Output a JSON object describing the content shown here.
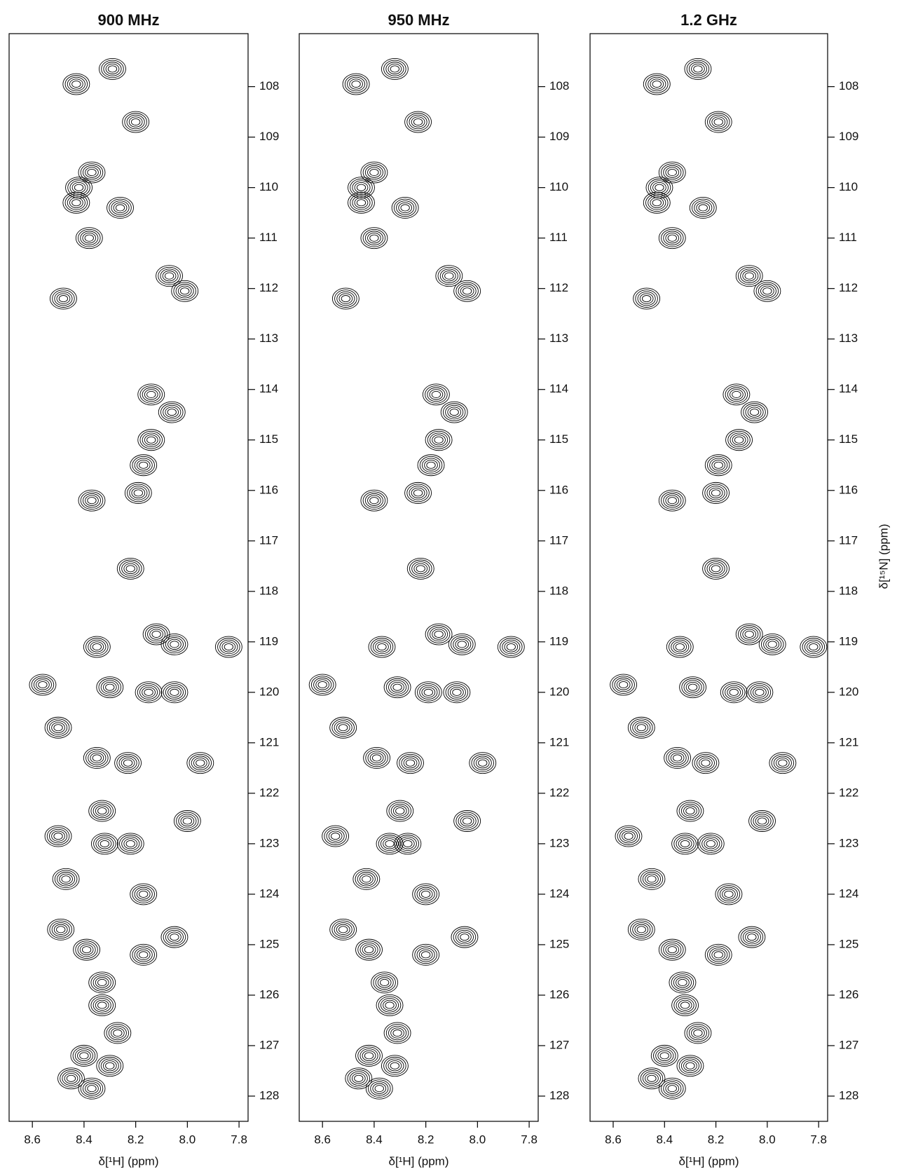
{
  "chart_data": [
    {
      "type": "scatter",
      "title": "900 MHz",
      "xlabel": "δ[¹H] (ppm)",
      "xlim": [
        8.69,
        7.765
      ],
      "xticks": [
        8.6,
        8.4,
        8.2,
        {
          "value": 8,
          "label": "8.0"
        },
        7.8
      ],
      "ylim": [
        128.5,
        106.95
      ],
      "yticks": [
        108,
        109,
        110,
        111,
        112,
        113,
        114,
        115,
        116,
        117,
        118,
        119,
        120,
        121,
        122,
        123,
        124,
        125,
        126,
        127,
        128
      ],
      "color": "#000000",
      "x": [
        8.29,
        8.43,
        8.2,
        8.37,
        8.42,
        8.43,
        8.26,
        8.38,
        8.07,
        8.01,
        8.48,
        8.14,
        8.06,
        8.14,
        8.17,
        8.37,
        8.19,
        8.22,
        8.35,
        8.12,
        8.05,
        7.84,
        8.56,
        8.3,
        8.15,
        8.05,
        8.5,
        8.35,
        8.23,
        7.95,
        8.33,
        8.0,
        8.5,
        8.32,
        8.22,
        8.47,
        8.17,
        8.49,
        8.05,
        8.17,
        8.39,
        8.33,
        8.33,
        8.27,
        8.4,
        8.3,
        8.45,
        8.37
      ],
      "y": [
        107.65,
        107.95,
        108.7,
        109.7,
        110.0,
        110.3,
        110.4,
        111.0,
        111.75,
        112.05,
        112.2,
        114.1,
        114.45,
        115.0,
        115.5,
        116.2,
        116.05,
        117.55,
        119.1,
        118.85,
        119.05,
        119.1,
        119.85,
        119.9,
        120.0,
        120.0,
        120.7,
        121.3,
        121.4,
        121.4,
        122.35,
        122.55,
        122.85,
        123.0,
        123.0,
        123.7,
        124.0,
        124.7,
        124.85,
        125.2,
        125.1,
        125.75,
        126.2,
        126.75,
        127.2,
        127.4,
        127.65,
        127.85
      ]
    },
    {
      "type": "scatter",
      "title": "950 MHz",
      "xlabel": "δ[¹H] (ppm)",
      "xlim": [
        8.69,
        7.765
      ],
      "xticks": [
        8.6,
        8.4,
        8.2,
        {
          "value": 8,
          "label": "8.0"
        },
        7.8
      ],
      "ylim": [
        128.5,
        106.95
      ],
      "yticks": [
        108,
        109,
        110,
        111,
        112,
        113,
        114,
        115,
        116,
        117,
        118,
        119,
        120,
        121,
        122,
        123,
        124,
        125,
        126,
        127,
        128
      ],
      "color": "#000000",
      "x": [
        8.32,
        8.47,
        8.23,
        8.4,
        8.45,
        8.45,
        8.28,
        8.4,
        8.11,
        8.04,
        8.51,
        8.16,
        8.09,
        8.15,
        8.18,
        8.4,
        8.23,
        8.22,
        8.37,
        8.15,
        8.06,
        7.87,
        8.6,
        8.31,
        8.19,
        8.08,
        8.52,
        8.39,
        8.26,
        7.98,
        8.3,
        8.04,
        8.55,
        8.34,
        8.27,
        8.43,
        8.2,
        8.52,
        8.05,
        8.2,
        8.42,
        8.36,
        8.34,
        8.31,
        8.42,
        8.32,
        8.46,
        8.38
      ],
      "y": [
        107.65,
        107.95,
        108.7,
        109.7,
        110.0,
        110.3,
        110.4,
        111.0,
        111.75,
        112.05,
        112.2,
        114.1,
        114.45,
        115.0,
        115.5,
        116.2,
        116.05,
        117.55,
        119.1,
        118.85,
        119.05,
        119.1,
        119.85,
        119.9,
        120.0,
        120.0,
        120.7,
        121.3,
        121.4,
        121.4,
        122.35,
        122.55,
        122.85,
        123.0,
        123.0,
        123.7,
        124.0,
        124.7,
        124.85,
        125.2,
        125.1,
        125.75,
        126.2,
        126.75,
        127.2,
        127.4,
        127.65,
        127.85
      ]
    },
    {
      "type": "scatter",
      "title": "1.2 GHz",
      "xlabel": "δ[¹H] (ppm)",
      "ylabel": "δ[¹⁵N] (ppm)",
      "xlim": [
        8.69,
        7.765
      ],
      "xticks": [
        8.6,
        8.4,
        8.2,
        {
          "value": 8,
          "label": "8.0"
        },
        7.8
      ],
      "ylim": [
        128.5,
        106.95
      ],
      "yticks": [
        108,
        109,
        110,
        111,
        112,
        113,
        114,
        115,
        116,
        117,
        118,
        119,
        120,
        121,
        122,
        123,
        124,
        125,
        126,
        127,
        128
      ],
      "color": "#000000",
      "x": [
        8.27,
        8.43,
        8.19,
        8.37,
        8.42,
        8.43,
        8.25,
        8.37,
        8.07,
        8.0,
        8.47,
        8.12,
        8.05,
        8.11,
        8.19,
        8.37,
        8.2,
        8.2,
        8.34,
        8.07,
        7.98,
        7.82,
        8.56,
        8.29,
        8.13,
        8.03,
        8.49,
        8.35,
        8.24,
        7.94,
        8.3,
        8.02,
        8.54,
        8.32,
        8.22,
        8.45,
        8.15,
        8.49,
        8.06,
        8.19,
        8.37,
        8.33,
        8.32,
        8.27,
        8.4,
        8.3,
        8.45,
        8.37
      ],
      "y": [
        107.65,
        107.95,
        108.7,
        109.7,
        110.0,
        110.3,
        110.4,
        111.0,
        111.75,
        112.05,
        112.2,
        114.1,
        114.45,
        115.0,
        115.5,
        116.2,
        116.05,
        117.55,
        119.1,
        118.85,
        119.05,
        119.1,
        119.85,
        119.9,
        120.0,
        120.0,
        120.7,
        121.3,
        121.4,
        121.4,
        122.35,
        122.55,
        122.85,
        123.0,
        123.0,
        123.7,
        124.0,
        124.7,
        124.85,
        125.2,
        125.1,
        125.75,
        126.2,
        126.75,
        127.2,
        127.4,
        127.65,
        127.85
      ]
    }
  ]
}
